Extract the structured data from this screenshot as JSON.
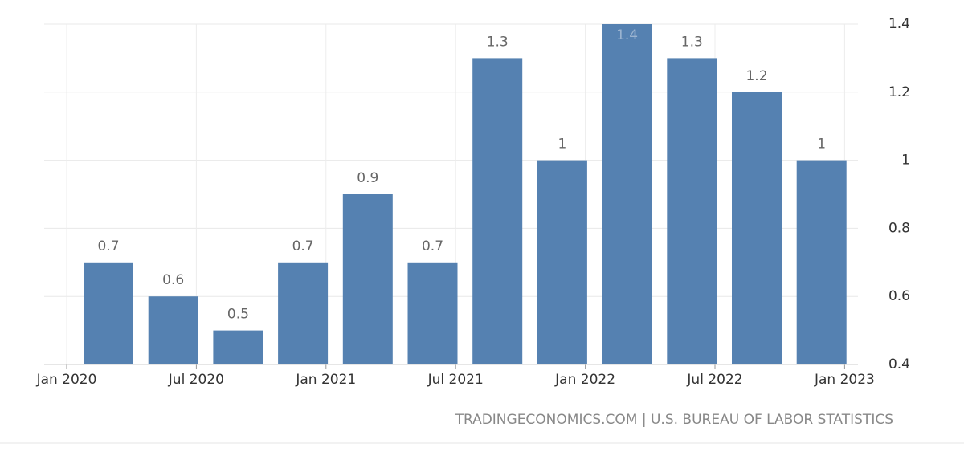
{
  "chart_data": {
    "type": "bar",
    "categories": [
      null,
      null,
      null,
      null,
      null,
      null,
      null,
      null,
      null,
      null,
      null,
      null
    ],
    "values": [
      0.7,
      0.6,
      0.5,
      0.7,
      0.9,
      0.7,
      1.3,
      1,
      1.4,
      1.3,
      1.2,
      1
    ],
    "color": "#5581b1",
    "ylim": [
      0.4,
      1.4
    ],
    "yticks": [
      0.4,
      0.6,
      0.8,
      1,
      1.2,
      1.4
    ],
    "xtick_labels": [
      "Jan 2020",
      "Jul 2020",
      "Jan 2021",
      "Jul 2021",
      "Jan 2022",
      "Jul 2022",
      "Jan 2023"
    ],
    "grid": true,
    "source": "TRADINGECONOMICS.COM | U.S. BUREAU OF LABOR STATISTICS"
  }
}
